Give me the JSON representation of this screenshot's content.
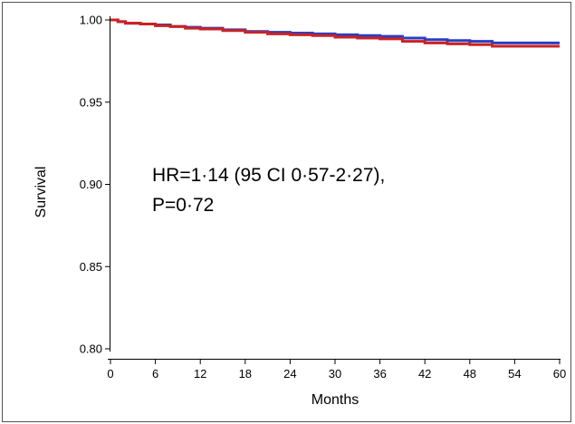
{
  "chart_data": {
    "type": "line",
    "title": "",
    "xlabel": "Months",
    "ylabel": "Survival",
    "xlim": [
      0,
      60
    ],
    "ylim": [
      0.8,
      1.0
    ],
    "x_ticks": [
      {
        "value": 0,
        "label": "0"
      },
      {
        "value": 6,
        "label": "6"
      },
      {
        "value": 12,
        "label": "12"
      },
      {
        "value": 18,
        "label": "18"
      },
      {
        "value": 24,
        "label": "24"
      },
      {
        "value": 30,
        "label": "30"
      },
      {
        "value": 36,
        "label": "36"
      },
      {
        "value": 42,
        "label": "42"
      },
      {
        "value": 48,
        "label": "48"
      },
      {
        "value": 54,
        "label": "54"
      },
      {
        "value": 60,
        "label": "60"
      }
    ],
    "y_ticks": [
      {
        "value": 0.8,
        "label": "0.80"
      },
      {
        "value": 0.85,
        "label": "0.85"
      },
      {
        "value": 0.9,
        "label": "0.90"
      },
      {
        "value": 0.95,
        "label": "0.95"
      },
      {
        "value": 1.0,
        "label": "1.00"
      }
    ],
    "grid": false,
    "annotation": [
      "HR=1·14 (95 CI 0·57-2·27),",
      "P=0·72"
    ],
    "series": [
      {
        "color": "#2b3fc4",
        "points": [
          [
            0,
            1.0
          ],
          [
            1,
            0.999
          ],
          [
            2,
            0.998
          ],
          [
            4,
            0.9975
          ],
          [
            6,
            0.997
          ],
          [
            8,
            0.996
          ],
          [
            10,
            0.9955
          ],
          [
            12,
            0.995
          ],
          [
            15,
            0.994
          ],
          [
            18,
            0.993
          ],
          [
            21,
            0.9925
          ],
          [
            24,
            0.992
          ],
          [
            27,
            0.9915
          ],
          [
            30,
            0.991
          ],
          [
            33,
            0.9905
          ],
          [
            36,
            0.99
          ],
          [
            39,
            0.989
          ],
          [
            42,
            0.988
          ],
          [
            45,
            0.9875
          ],
          [
            48,
            0.987
          ],
          [
            51,
            0.986
          ],
          [
            54,
            0.986
          ],
          [
            57,
            0.986
          ],
          [
            60,
            0.986
          ]
        ]
      },
      {
        "color": "#cc2222",
        "points": [
          [
            0,
            1.0
          ],
          [
            1,
            0.999
          ],
          [
            2,
            0.998
          ],
          [
            4,
            0.9975
          ],
          [
            6,
            0.9965
          ],
          [
            8,
            0.996
          ],
          [
            10,
            0.995
          ],
          [
            12,
            0.9945
          ],
          [
            15,
            0.9935
          ],
          [
            18,
            0.9925
          ],
          [
            21,
            0.9915
          ],
          [
            24,
            0.991
          ],
          [
            27,
            0.9905
          ],
          [
            30,
            0.9895
          ],
          [
            33,
            0.989
          ],
          [
            36,
            0.9885
          ],
          [
            39,
            0.987
          ],
          [
            42,
            0.986
          ],
          [
            45,
            0.9855
          ],
          [
            48,
            0.985
          ],
          [
            51,
            0.984
          ],
          [
            54,
            0.984
          ],
          [
            57,
            0.984
          ],
          [
            60,
            0.984
          ]
        ]
      }
    ]
  }
}
